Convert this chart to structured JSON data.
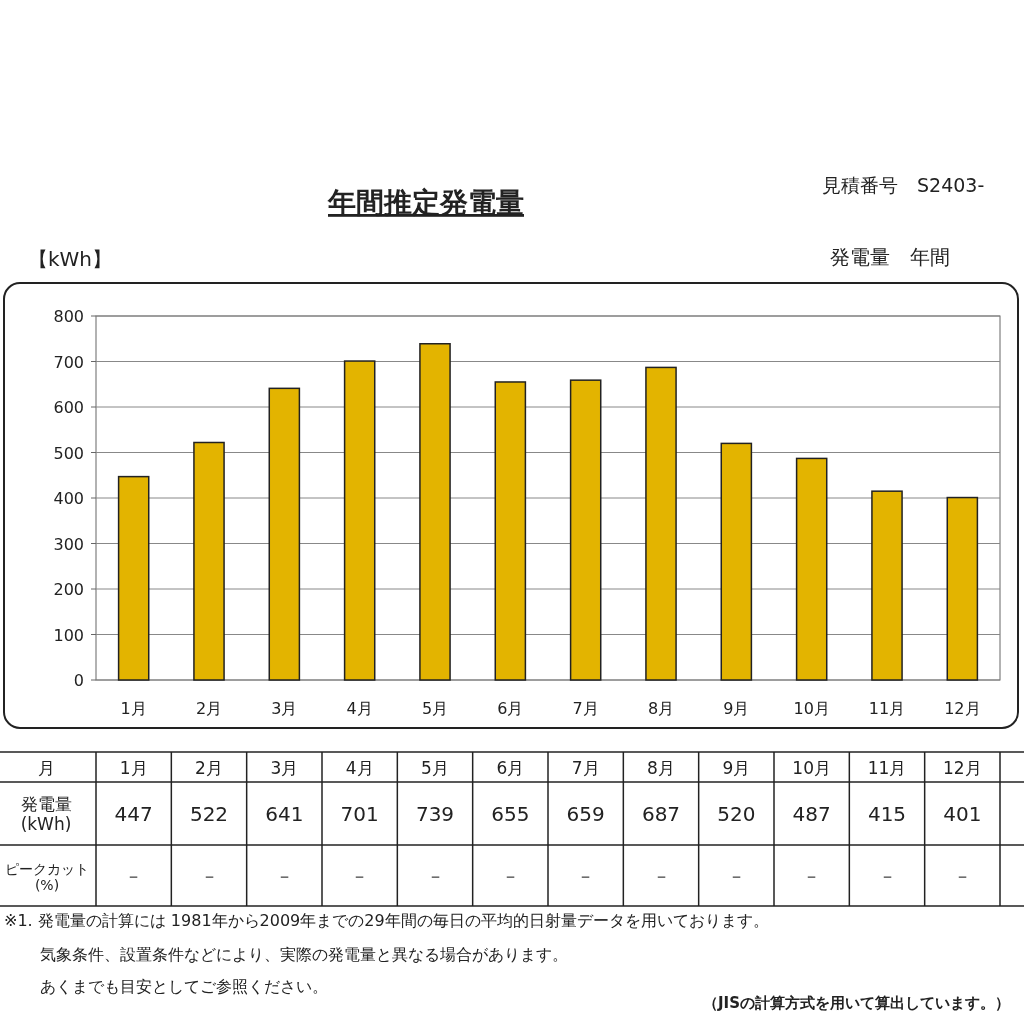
{
  "chart_data": {
    "type": "bar",
    "title": "年間推定発電量",
    "ylabel": "【kWh】",
    "categories": [
      "1月",
      "2月",
      "3月",
      "4月",
      "5月",
      "6月",
      "7月",
      "8月",
      "9月",
      "10月",
      "11月",
      "12月"
    ],
    "values": [
      447,
      522,
      641,
      701,
      739,
      655,
      659,
      687,
      520,
      487,
      415,
      401
    ],
    "color": "#e3b400",
    "ylim": [
      0,
      800
    ],
    "yticks": [
      0,
      100,
      200,
      300,
      400,
      500,
      600,
      700,
      800
    ],
    "grid": "y",
    "data_labels": true,
    "annotations": [
      "見積番号　S2403-",
      "発電量　年間",
      "月",
      "発電量\n(kWh)",
      "ピークカット\n(%)",
      "－",
      "※1. 発電量の計算には 1981年から2009年までの29年間の毎日の平均的日射量データを用いております。",
      "気象条件、設置条件などにより、実際の発電量と異なる場合があります。",
      "あくまでも目安としてご参照ください。",
      "（JISの計算方式を用いて算出しています。）"
    ]
  }
}
